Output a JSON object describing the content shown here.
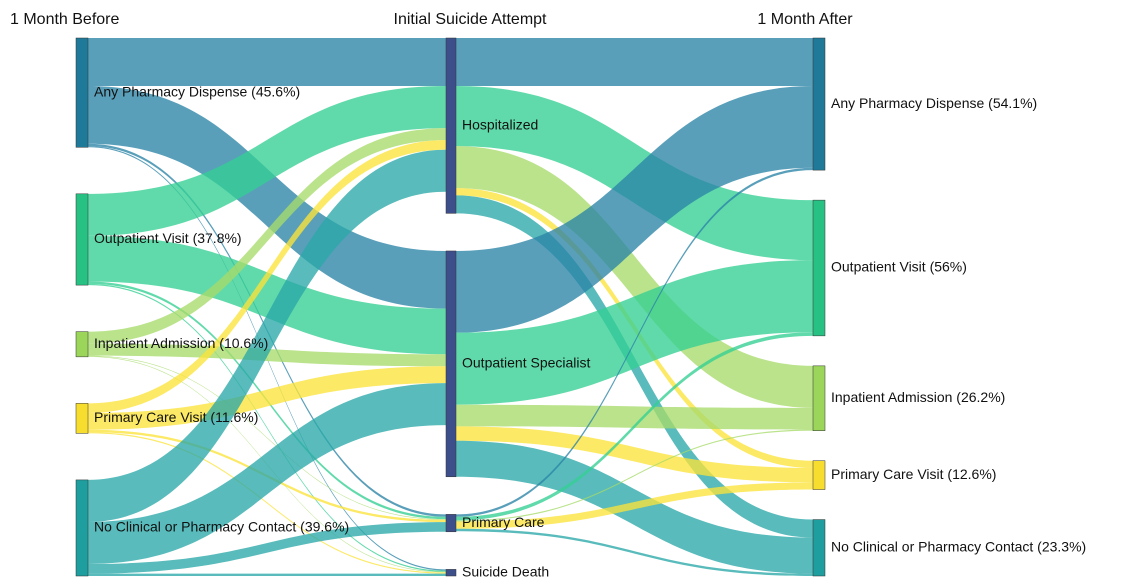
{
  "chart_data": {
    "type": "sankey",
    "columns": [
      {
        "title": "1 Month Before",
        "nodes": [
          {
            "label": "Any Pharmacy Dispense (45.6%)",
            "color": "#1f7a99"
          },
          {
            "label": "Outpatient Visit (37.8%)",
            "color": "#27c283"
          },
          {
            "label": "Inpatient Admission (10.6%)",
            "color": "#9bd55a"
          },
          {
            "label": "Primary Care Visit (11.6%)",
            "color": "#f7de2e"
          },
          {
            "label": "No Clinical or Pharmacy Contact (39.6%)",
            "color": "#1e9e9e"
          }
        ]
      },
      {
        "title": "Initial Suicide Attempt",
        "nodes": [
          {
            "label": "Hospitalized",
            "color": "#3d4f8a"
          },
          {
            "label": "Outpatient Specialist",
            "color": "#3d4f8a"
          },
          {
            "label": "Primary Care",
            "color": "#3d4f8a"
          },
          {
            "label": "Suicide Death",
            "color": "#3d4f8a"
          }
        ]
      },
      {
        "title": "1 Month After",
        "nodes": [
          {
            "label": "Any Pharmacy Dispense (54.1%)",
            "color": "#1f7a99"
          },
          {
            "label": "Outpatient Visit (56%)",
            "color": "#27c283"
          },
          {
            "label": "Inpatient Admission (26.2%)",
            "color": "#9bd55a"
          },
          {
            "label": "Primary Care Visit (12.6%)",
            "color": "#f7de2e"
          },
          {
            "label": "No Clinical or Pharmacy Contact (23.3%)",
            "color": "#1e9e9e"
          }
        ]
      }
    ],
    "links": [
      {
        "from": [
          0,
          0
        ],
        "to": [
          1,
          0
        ],
        "value": 40,
        "color": "#2a84a6"
      },
      {
        "from": [
          0,
          0
        ],
        "to": [
          1,
          1
        ],
        "value": 48,
        "color": "#2a84a6"
      },
      {
        "from": [
          0,
          0
        ],
        "to": [
          1,
          2
        ],
        "value": 2,
        "color": "#2a84a6"
      },
      {
        "from": [
          0,
          0
        ],
        "to": [
          1,
          3
        ],
        "value": 1,
        "color": "#2a84a6"
      },
      {
        "from": [
          0,
          1
        ],
        "to": [
          1,
          0
        ],
        "value": 35,
        "color": "#35cf93"
      },
      {
        "from": [
          0,
          1
        ],
        "to": [
          1,
          1
        ],
        "value": 38,
        "color": "#35cf93"
      },
      {
        "from": [
          0,
          1
        ],
        "to": [
          1,
          2
        ],
        "value": 2,
        "color": "#35cf93"
      },
      {
        "from": [
          0,
          1
        ],
        "to": [
          1,
          3
        ],
        "value": 1,
        "color": "#35cf93"
      },
      {
        "from": [
          0,
          2
        ],
        "to": [
          1,
          0
        ],
        "value": 10,
        "color": "#a6db6a"
      },
      {
        "from": [
          0,
          2
        ],
        "to": [
          1,
          1
        ],
        "value": 10,
        "color": "#a6db6a"
      },
      {
        "from": [
          0,
          2
        ],
        "to": [
          1,
          2
        ],
        "value": 0.5,
        "color": "#a6db6a"
      },
      {
        "from": [
          0,
          2
        ],
        "to": [
          1,
          3
        ],
        "value": 0.5,
        "color": "#a6db6a"
      },
      {
        "from": [
          0,
          3
        ],
        "to": [
          1,
          0
        ],
        "value": 8,
        "color": "#fbe33a"
      },
      {
        "from": [
          0,
          3
        ],
        "to": [
          1,
          1
        ],
        "value": 14,
        "color": "#fbe33a"
      },
      {
        "from": [
          0,
          3
        ],
        "to": [
          1,
          2
        ],
        "value": 2,
        "color": "#fbe33a"
      },
      {
        "from": [
          0,
          3
        ],
        "to": [
          1,
          3
        ],
        "value": 1,
        "color": "#fbe33a"
      },
      {
        "from": [
          0,
          4
        ],
        "to": [
          1,
          0
        ],
        "value": 35,
        "color": "#2aa8a8"
      },
      {
        "from": [
          0,
          4
        ],
        "to": [
          1,
          1
        ],
        "value": 35,
        "color": "#2aa8a8"
      },
      {
        "from": [
          0,
          4
        ],
        "to": [
          1,
          2
        ],
        "value": 8,
        "color": "#2aa8a8"
      },
      {
        "from": [
          0,
          4
        ],
        "to": [
          1,
          3
        ],
        "value": 2,
        "color": "#2aa8a8"
      },
      {
        "from": [
          1,
          0
        ],
        "to": [
          2,
          0
        ],
        "value": 40,
        "color": "#2a84a6"
      },
      {
        "from": [
          1,
          0
        ],
        "to": [
          2,
          1
        ],
        "value": 50,
        "color": "#35cf93"
      },
      {
        "from": [
          1,
          0
        ],
        "to": [
          2,
          2
        ],
        "value": 35,
        "color": "#a6db6a"
      },
      {
        "from": [
          1,
          0
        ],
        "to": [
          2,
          3
        ],
        "value": 6,
        "color": "#fbe33a"
      },
      {
        "from": [
          1,
          0
        ],
        "to": [
          2,
          4
        ],
        "value": 15,
        "color": "#2aa8a8"
      },
      {
        "from": [
          1,
          1
        ],
        "to": [
          2,
          0
        ],
        "value": 68,
        "color": "#2a84a6"
      },
      {
        "from": [
          1,
          1
        ],
        "to": [
          2,
          1
        ],
        "value": 60,
        "color": "#35cf93"
      },
      {
        "from": [
          1,
          1
        ],
        "to": [
          2,
          2
        ],
        "value": 18,
        "color": "#a6db6a"
      },
      {
        "from": [
          1,
          1
        ],
        "to": [
          2,
          3
        ],
        "value": 12,
        "color": "#fbe33a"
      },
      {
        "from": [
          1,
          1
        ],
        "to": [
          2,
          4
        ],
        "value": 30,
        "color": "#2aa8a8"
      },
      {
        "from": [
          1,
          2
        ],
        "to": [
          2,
          0
        ],
        "value": 2,
        "color": "#2a84a6"
      },
      {
        "from": [
          1,
          2
        ],
        "to": [
          2,
          1
        ],
        "value": 3,
        "color": "#35cf93"
      },
      {
        "from": [
          1,
          2
        ],
        "to": [
          2,
          2
        ],
        "value": 1,
        "color": "#a6db6a"
      },
      {
        "from": [
          1,
          2
        ],
        "to": [
          2,
          3
        ],
        "value": 6,
        "color": "#fbe33a"
      },
      {
        "from": [
          1,
          2
        ],
        "to": [
          2,
          4
        ],
        "value": 2,
        "color": "#2aa8a8"
      }
    ]
  }
}
